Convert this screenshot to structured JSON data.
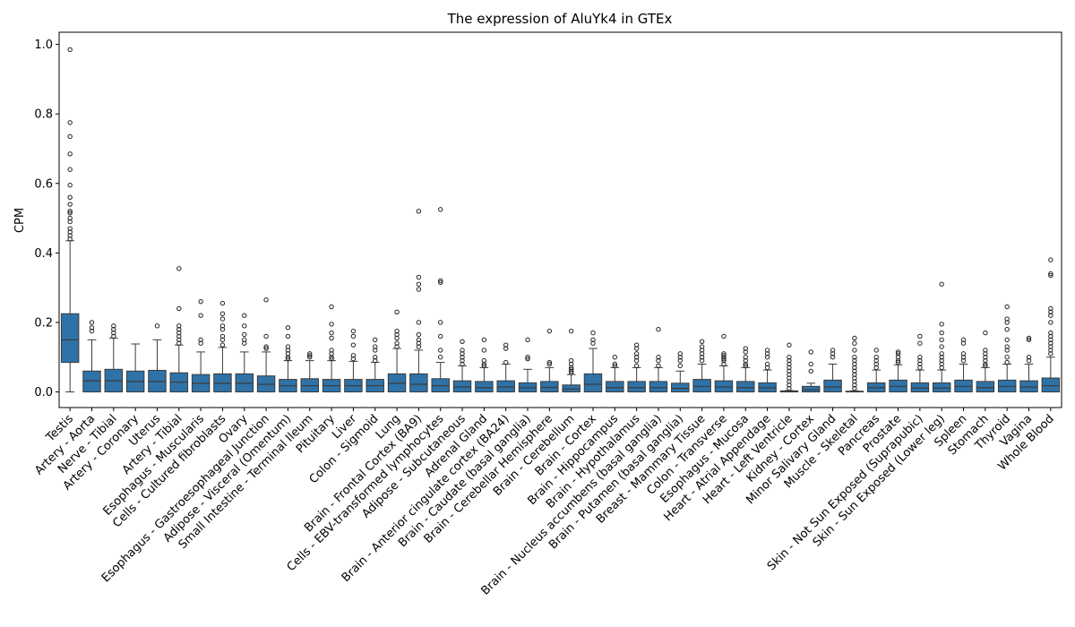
{
  "chart_data": {
    "type": "box",
    "title": "The expression of AluYk4 in GTEx",
    "xlabel": "",
    "ylabel": "CPM",
    "ylim": [
      -0.045,
      1.035
    ],
    "yticks": [
      0.0,
      0.2,
      0.4,
      0.6,
      0.8,
      1.0
    ],
    "ytick_labels": [
      "0.0",
      "0.2",
      "0.4",
      "0.6",
      "0.8",
      "1.0"
    ],
    "grid": false,
    "box_color": "#2f72a7",
    "categories": [
      "Testis",
      "Artery - Aorta",
      "Nerve - Tibial",
      "Artery - Coronary",
      "Uterus",
      "Artery - Tibial",
      "Esophagus - Muscularis",
      "Cells - Cultured fibroblasts",
      "Ovary",
      "Esophagus - Gastroesophageal Junction",
      "Adipose - Visceral (Omentum)",
      "Small Intestine - Terminal Ileum",
      "Pituitary",
      "Liver",
      "Colon - Sigmoid",
      "Lung",
      "Brain - Frontal Cortex (BA9)",
      "Cells - EBV-transformed lymphocytes",
      "Adipose - Subcutaneous",
      "Adrenal Gland",
      "Brain - Anterior cingulate cortex (BA24)",
      "Brain - Caudate (basal ganglia)",
      "Brain - Cerebellar Hemisphere",
      "Brain - Cerebellum",
      "Brain - Cortex",
      "Brain - Hippocampus",
      "Brain - Hypothalamus",
      "Brain - Nucleus accumbens (basal ganglia)",
      "Brain - Putamen (basal ganglia)",
      "Breast - Mammary Tissue",
      "Colon - Transverse",
      "Esophagus - Mucosa",
      "Heart - Atrial Appendage",
      "Heart - Left Ventricle",
      "Kidney - Cortex",
      "Minor Salivary Gland",
      "Muscle - Skeletal",
      "Pancreas",
      "Prostate",
      "Skin - Not Sun Exposed (Suprapubic)",
      "Skin - Sun Exposed (Lower leg)",
      "Spleen",
      "Stomach",
      "Thyroid",
      "Vagina",
      "Whole Blood"
    ],
    "boxes": [
      {
        "q1": 0.085,
        "median": 0.15,
        "q3": 0.225,
        "whislo": 0.0,
        "whishi": 0.435,
        "fliers": [
          0.44,
          0.45,
          0.46,
          0.47,
          0.49,
          0.5,
          0.515,
          0.52,
          0.54,
          0.56,
          0.595,
          0.64,
          0.685,
          0.735,
          0.775,
          0.985
        ]
      },
      {
        "q1": 0.0,
        "median": 0.032,
        "q3": 0.06,
        "whislo": 0.0,
        "whishi": 0.15,
        "fliers": [
          0.175,
          0.185,
          0.2
        ]
      },
      {
        "q1": 0.0,
        "median": 0.032,
        "q3": 0.065,
        "whislo": 0.0,
        "whishi": 0.155,
        "fliers": [
          0.16,
          0.17,
          0.18,
          0.19
        ]
      },
      {
        "q1": 0.0,
        "median": 0.03,
        "q3": 0.06,
        "whislo": 0.0,
        "whishi": 0.138,
        "fliers": []
      },
      {
        "q1": 0.0,
        "median": 0.03,
        "q3": 0.062,
        "whislo": 0.0,
        "whishi": 0.15,
        "fliers": [
          0.19
        ]
      },
      {
        "q1": 0.0,
        "median": 0.028,
        "q3": 0.055,
        "whislo": 0.0,
        "whishi": 0.135,
        "fliers": [
          0.14,
          0.15,
          0.16,
          0.17,
          0.18,
          0.19,
          0.24,
          0.355
        ]
      },
      {
        "q1": 0.0,
        "median": 0.025,
        "q3": 0.05,
        "whislo": 0.0,
        "whishi": 0.115,
        "fliers": [
          0.14,
          0.15,
          0.22,
          0.26
        ]
      },
      {
        "q1": 0.0,
        "median": 0.025,
        "q3": 0.052,
        "whislo": 0.0,
        "whishi": 0.128,
        "fliers": [
          0.135,
          0.15,
          0.16,
          0.18,
          0.19,
          0.21,
          0.225,
          0.255
        ]
      },
      {
        "q1": 0.0,
        "median": 0.025,
        "q3": 0.052,
        "whislo": 0.0,
        "whishi": 0.115,
        "fliers": [
          0.14,
          0.15,
          0.165,
          0.19,
          0.22
        ]
      },
      {
        "q1": 0.0,
        "median": 0.022,
        "q3": 0.046,
        "whislo": 0.0,
        "whishi": 0.115,
        "fliers": [
          0.125,
          0.13,
          0.16,
          0.265
        ]
      },
      {
        "q1": 0.0,
        "median": 0.018,
        "q3": 0.036,
        "whislo": 0.0,
        "whishi": 0.09,
        "fliers": [
          0.095,
          0.1,
          0.11,
          0.12,
          0.13,
          0.16,
          0.185
        ]
      },
      {
        "q1": 0.0,
        "median": 0.018,
        "q3": 0.038,
        "whislo": 0.0,
        "whishi": 0.09,
        "fliers": [
          0.1,
          0.105,
          0.11
        ]
      },
      {
        "q1": 0.0,
        "median": 0.018,
        "q3": 0.036,
        "whislo": 0.0,
        "whishi": 0.09,
        "fliers": [
          0.095,
          0.1,
          0.11,
          0.12,
          0.155,
          0.17,
          0.195,
          0.245
        ]
      },
      {
        "q1": 0.0,
        "median": 0.018,
        "q3": 0.036,
        "whislo": 0.0,
        "whishi": 0.088,
        "fliers": [
          0.095,
          0.105,
          0.135,
          0.16,
          0.175
        ]
      },
      {
        "q1": 0.0,
        "median": 0.018,
        "q3": 0.036,
        "whislo": 0.0,
        "whishi": 0.085,
        "fliers": [
          0.09,
          0.1,
          0.12,
          0.13,
          0.15
        ]
      },
      {
        "q1": 0.0,
        "median": 0.025,
        "q3": 0.052,
        "whislo": 0.0,
        "whishi": 0.125,
        "fliers": [
          0.13,
          0.14,
          0.155,
          0.165,
          0.175,
          0.23
        ]
      },
      {
        "q1": 0.0,
        "median": 0.022,
        "q3": 0.052,
        "whislo": 0.0,
        "whishi": 0.12,
        "fliers": [
          0.13,
          0.14,
          0.15,
          0.165,
          0.2,
          0.295,
          0.31,
          0.33,
          0.52
        ]
      },
      {
        "q1": 0.0,
        "median": 0.018,
        "q3": 0.038,
        "whislo": 0.0,
        "whishi": 0.085,
        "fliers": [
          0.1,
          0.12,
          0.16,
          0.2,
          0.315,
          0.32,
          0.525
        ]
      },
      {
        "q1": 0.0,
        "median": 0.014,
        "q3": 0.032,
        "whislo": 0.0,
        "whishi": 0.075,
        "fliers": [
          0.08,
          0.09,
          0.1,
          0.11,
          0.12,
          0.145
        ]
      },
      {
        "q1": 0.0,
        "median": 0.012,
        "q3": 0.03,
        "whislo": 0.0,
        "whishi": 0.07,
        "fliers": [
          0.075,
          0.08,
          0.09,
          0.12,
          0.15
        ]
      },
      {
        "q1": 0.0,
        "median": 0.014,
        "q3": 0.032,
        "whislo": 0.0,
        "whishi": 0.08,
        "fliers": [
          0.085,
          0.125,
          0.135
        ]
      },
      {
        "q1": 0.0,
        "median": 0.012,
        "q3": 0.026,
        "whislo": 0.0,
        "whishi": 0.065,
        "fliers": [
          0.095,
          0.1,
          0.15
        ]
      },
      {
        "q1": 0.0,
        "median": 0.013,
        "q3": 0.03,
        "whislo": 0.0,
        "whishi": 0.07,
        "fliers": [
          0.08,
          0.085,
          0.175
        ]
      },
      {
        "q1": 0.0,
        "median": 0.008,
        "q3": 0.02,
        "whislo": 0.0,
        "whishi": 0.05,
        "fliers": [
          0.055,
          0.06,
          0.065,
          0.07,
          0.08,
          0.09,
          0.175
        ]
      },
      {
        "q1": 0.0,
        "median": 0.022,
        "q3": 0.052,
        "whislo": 0.0,
        "whishi": 0.125,
        "fliers": [
          0.14,
          0.15,
          0.17
        ]
      },
      {
        "q1": 0.0,
        "median": 0.012,
        "q3": 0.03,
        "whislo": 0.0,
        "whishi": 0.07,
        "fliers": [
          0.075,
          0.08,
          0.1
        ]
      },
      {
        "q1": 0.0,
        "median": 0.012,
        "q3": 0.03,
        "whislo": 0.0,
        "whishi": 0.07,
        "fliers": [
          0.075,
          0.09,
          0.1,
          0.11,
          0.125,
          0.135
        ]
      },
      {
        "q1": 0.0,
        "median": 0.012,
        "q3": 0.03,
        "whislo": 0.0,
        "whishi": 0.07,
        "fliers": [
          0.075,
          0.09,
          0.1,
          0.18
        ]
      },
      {
        "q1": 0.0,
        "median": 0.01,
        "q3": 0.025,
        "whislo": 0.0,
        "whishi": 0.06,
        "fliers": [
          0.075,
          0.09,
          0.1,
          0.11
        ]
      },
      {
        "q1": 0.0,
        "median": 0.016,
        "q3": 0.036,
        "whislo": 0.0,
        "whishi": 0.08,
        "fliers": [
          0.09,
          0.1,
          0.11,
          0.12,
          0.13,
          0.145
        ]
      },
      {
        "q1": 0.0,
        "median": 0.014,
        "q3": 0.032,
        "whislo": 0.0,
        "whishi": 0.075,
        "fliers": [
          0.08,
          0.09,
          0.095,
          0.1,
          0.105,
          0.11,
          0.16
        ]
      },
      {
        "q1": 0.0,
        "median": 0.012,
        "q3": 0.03,
        "whislo": 0.0,
        "whishi": 0.07,
        "fliers": [
          0.075,
          0.08,
          0.09,
          0.1,
          0.115,
          0.125
        ]
      },
      {
        "q1": 0.0,
        "median": 0.012,
        "q3": 0.026,
        "whislo": 0.0,
        "whishi": 0.063,
        "fliers": [
          0.07,
          0.08,
          0.1,
          0.11,
          0.12
        ]
      },
      {
        "q1": 0.0,
        "median": 0.001,
        "q3": 0.003,
        "whislo": 0.0,
        "whishi": 0.004,
        "fliers": [
          0.01,
          0.02,
          0.03,
          0.04,
          0.05,
          0.06,
          0.07,
          0.08,
          0.09,
          0.1,
          0.135
        ]
      },
      {
        "q1": 0.0,
        "median": 0.006,
        "q3": 0.016,
        "whislo": 0.0,
        "whishi": 0.025,
        "fliers": [
          0.06,
          0.08,
          0.115
        ]
      },
      {
        "q1": 0.0,
        "median": 0.014,
        "q3": 0.034,
        "whislo": 0.0,
        "whishi": 0.08,
        "fliers": [
          0.1,
          0.11,
          0.12
        ]
      },
      {
        "q1": 0.0,
        "median": 0.001,
        "q3": 0.002,
        "whislo": 0.0,
        "whishi": 0.003,
        "fliers": [
          0.01,
          0.02,
          0.03,
          0.04,
          0.05,
          0.06,
          0.07,
          0.08,
          0.09,
          0.1,
          0.12,
          0.14,
          0.155
        ]
      },
      {
        "q1": 0.0,
        "median": 0.012,
        "q3": 0.026,
        "whislo": 0.0,
        "whishi": 0.063,
        "fliers": [
          0.07,
          0.08,
          0.09,
          0.1,
          0.12
        ]
      },
      {
        "q1": 0.0,
        "median": 0.016,
        "q3": 0.034,
        "whislo": 0.0,
        "whishi": 0.078,
        "fliers": [
          0.085,
          0.09,
          0.1,
          0.11,
          0.115
        ]
      },
      {
        "q1": 0.0,
        "median": 0.011,
        "q3": 0.026,
        "whislo": 0.0,
        "whishi": 0.063,
        "fliers": [
          0.07,
          0.08,
          0.09,
          0.1,
          0.14,
          0.16
        ]
      },
      {
        "q1": 0.0,
        "median": 0.011,
        "q3": 0.026,
        "whislo": 0.0,
        "whishi": 0.063,
        "fliers": [
          0.07,
          0.08,
          0.09,
          0.1,
          0.11,
          0.13,
          0.15,
          0.17,
          0.195,
          0.31
        ]
      },
      {
        "q1": 0.0,
        "median": 0.016,
        "q3": 0.034,
        "whislo": 0.0,
        "whishi": 0.08,
        "fliers": [
          0.09,
          0.1,
          0.11,
          0.14,
          0.15
        ]
      },
      {
        "q1": 0.0,
        "median": 0.012,
        "q3": 0.03,
        "whislo": 0.0,
        "whishi": 0.07,
        "fliers": [
          0.075,
          0.08,
          0.09,
          0.1,
          0.11,
          0.12,
          0.17
        ]
      },
      {
        "q1": 0.0,
        "median": 0.016,
        "q3": 0.034,
        "whislo": 0.0,
        "whishi": 0.08,
        "fliers": [
          0.085,
          0.1,
          0.12,
          0.13,
          0.15,
          0.18,
          0.2,
          0.21,
          0.245
        ]
      },
      {
        "q1": 0.0,
        "median": 0.014,
        "q3": 0.032,
        "whislo": 0.0,
        "whishi": 0.08,
        "fliers": [
          0.09,
          0.1,
          0.15,
          0.155
        ]
      },
      {
        "q1": 0.0,
        "median": 0.018,
        "q3": 0.04,
        "whislo": 0.0,
        "whishi": 0.1,
        "fliers": [
          0.11,
          0.12,
          0.13,
          0.14,
          0.15,
          0.16,
          0.17,
          0.2,
          0.22,
          0.23,
          0.24,
          0.335,
          0.34,
          0.38
        ]
      }
    ]
  }
}
